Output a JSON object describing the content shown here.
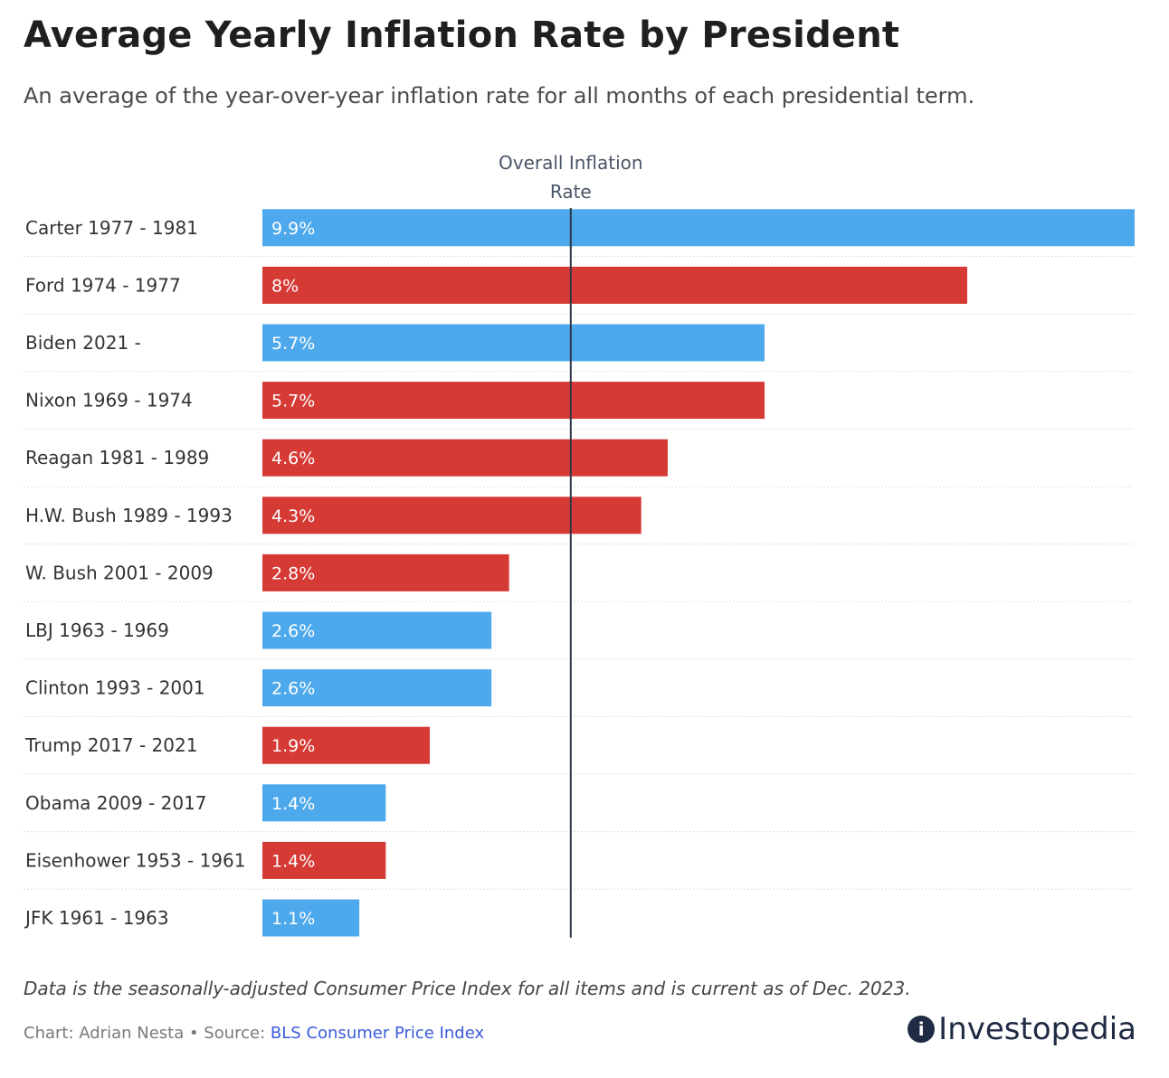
{
  "title": "Average Yearly Inflation Rate by President",
  "subtitle": "An average of the year-over-year inflation rate for all months of each presidential term.",
  "note": "Data is the seasonally-adjusted Consumer Price Index for all items and is current as of Dec. 2023.",
  "credit": {
    "prefix": "Chart: Adrian Nesta • Source: ",
    "source_link": "BLS Consumer Price Index"
  },
  "logo": {
    "mark": "i",
    "text": "Investopedia",
    "icon": "investopedia-logo-icon"
  },
  "colors": {
    "democrat": "#4ea9ec",
    "republican": "#d63a35",
    "reference_line": "#2d3748",
    "gridline": "#dddddd"
  },
  "chart_data": {
    "type": "bar",
    "orientation": "horizontal",
    "categories": [
      "Carter 1977 - 1981",
      "Ford 1974 - 1977",
      "Biden 2021 -",
      "Nixon 1969 - 1974",
      "Reagan 1981 - 1989",
      "H.W. Bush 1989 - 1993",
      "W. Bush 2001 - 2009",
      "LBJ 1963 - 1969",
      "Clinton 1993 - 2001",
      "Trump 2017 - 2021",
      "Obama 2009 - 2017",
      "Eisenhower 1953 - 1961",
      "JFK 1961 - 1963"
    ],
    "values": [
      9.9,
      8,
      5.7,
      5.7,
      4.6,
      4.3,
      2.8,
      2.6,
      2.6,
      1.9,
      1.4,
      1.4,
      1.1
    ],
    "value_labels": [
      "9.9%",
      "8%",
      "5.7%",
      "5.7%",
      "4.6%",
      "4.3%",
      "2.8%",
      "2.6%",
      "2.6%",
      "1.9%",
      "1.4%",
      "1.4%",
      "1.1%"
    ],
    "party": [
      "democrat",
      "republican",
      "democrat",
      "republican",
      "republican",
      "republican",
      "republican",
      "democrat",
      "democrat",
      "republican",
      "democrat",
      "republican",
      "democrat"
    ],
    "reference_line": {
      "value": 3.5,
      "label_lines": [
        "Overall Inflation",
        "Rate"
      ]
    },
    "xlim": [
      0,
      9.9
    ],
    "xlabel": "",
    "ylabel": "",
    "grid": "horizontal-dotted",
    "legend": "none"
  }
}
